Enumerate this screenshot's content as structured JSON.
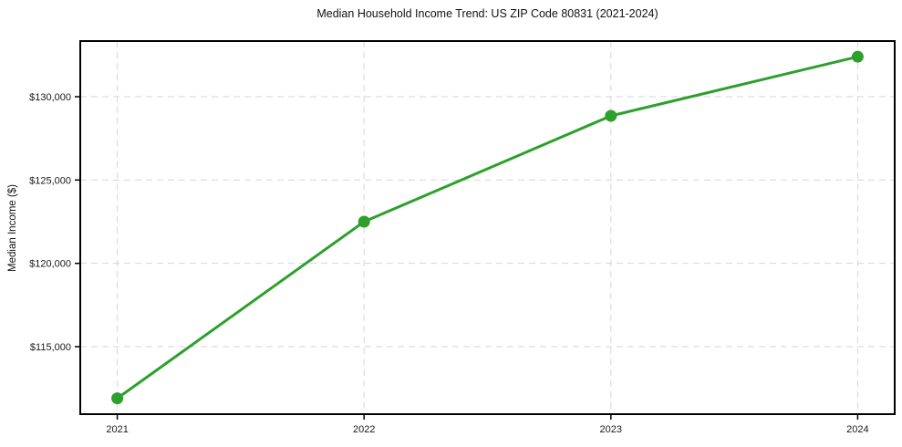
{
  "page": {
    "background_color": "#ffffff"
  },
  "chart_data": {
    "type": "line",
    "title": "Median Household Income Trend: US ZIP Code 80831 (2021-2024)",
    "xlabel": "",
    "ylabel": "Median Income ($)",
    "x": [
      2021,
      2022,
      2023,
      2024
    ],
    "series": [
      {
        "name": "Median Household Income",
        "values": [
          111900,
          122500,
          128850,
          132400
        ]
      }
    ],
    "xticks": {
      "values": [
        2021,
        2022,
        2023,
        2024
      ],
      "labels": [
        "2021",
        "2022",
        "2023",
        "2024"
      ]
    },
    "yticks": {
      "values": [
        115000,
        120000,
        125000,
        130000
      ],
      "labels": [
        "$115,000",
        "$120,000",
        "$125,000",
        "$130,000"
      ]
    },
    "xlim": [
      2020.85,
      2024.15
    ],
    "ylim": [
      110950,
      133340
    ],
    "grid": true,
    "grid_style": "dashed",
    "legend_position": "none",
    "line_color": "#2ca02c",
    "marker": "circle",
    "marker_diameter": 13,
    "line_width": 3,
    "grid_color": "#d6d6d6",
    "spine_color": "#000000",
    "text_color": "#1a1a1a"
  }
}
